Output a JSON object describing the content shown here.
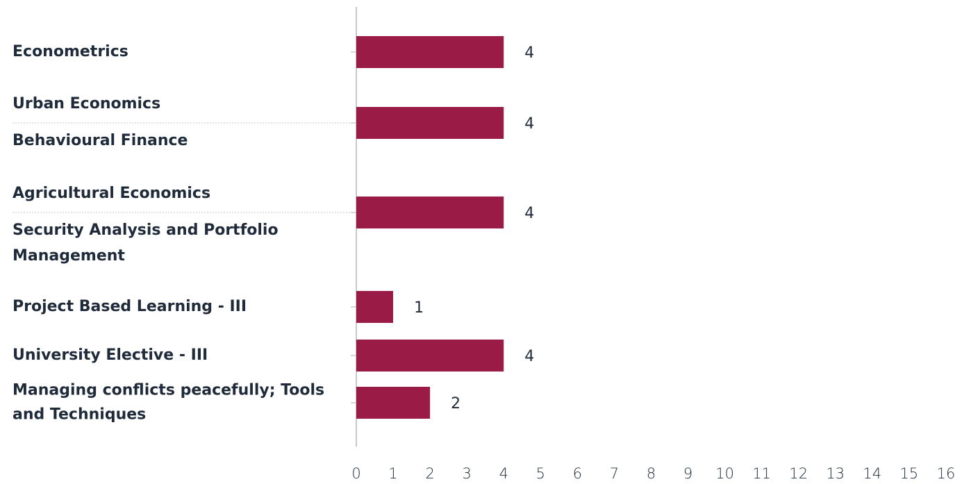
{
  "chart_data": {
    "type": "bar",
    "orientation": "horizontal",
    "categories": [
      [
        "Econometrics"
      ],
      [
        "Urban Economics",
        "Behavioural Finance"
      ],
      [
        "Agricultural Economics",
        "Security Analysis and Portfolio Management"
      ],
      [
        "Project Based Learning - III"
      ],
      [
        "University Elective - III"
      ],
      [
        "Managing conflicts peacefully; Tools and Techniques"
      ]
    ],
    "values": [
      4,
      4,
      4,
      1,
      4,
      2
    ],
    "color": "#9b1b47",
    "xlim": [
      0,
      16
    ],
    "xticks": [
      0,
      1,
      2,
      3,
      4,
      5,
      6,
      7,
      8,
      9,
      10,
      11,
      12,
      13,
      14,
      15,
      16
    ],
    "grid": false
  }
}
